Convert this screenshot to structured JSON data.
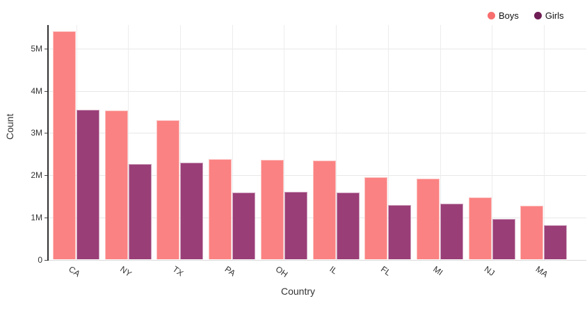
{
  "chart_data": {
    "type": "bar",
    "title": "",
    "xlabel": "Country",
    "ylabel": "Count",
    "categories": [
      "CA",
      "NY",
      "TX",
      "PA",
      "OH",
      "IL",
      "FL",
      "MI",
      "NJ",
      "MA"
    ],
    "series": [
      {
        "name": "Boys",
        "bar_color": "#fb8282",
        "legend_color": "#f86e6e",
        "values_millions": [
          5.41,
          3.53,
          3.3,
          2.38,
          2.36,
          2.34,
          1.96,
          1.92,
          1.48,
          1.27
        ]
      },
      {
        "name": "Girls",
        "bar_color": "#9a3e77",
        "legend_color": "#6e1d55",
        "values_millions": [
          3.55,
          2.26,
          2.3,
          1.59,
          1.6,
          1.59,
          1.29,
          1.32,
          0.97,
          0.82
        ]
      }
    ],
    "yticks": [
      {
        "value": 0,
        "label": "0"
      },
      {
        "value": 1,
        "label": "1M"
      },
      {
        "value": 2,
        "label": "2M"
      },
      {
        "value": 3,
        "label": "3M"
      },
      {
        "value": 4,
        "label": "4M"
      },
      {
        "value": 5,
        "label": "5M"
      }
    ],
    "ylim": [
      0,
      5.5
    ],
    "grid": true,
    "legend_position": "top-right"
  }
}
